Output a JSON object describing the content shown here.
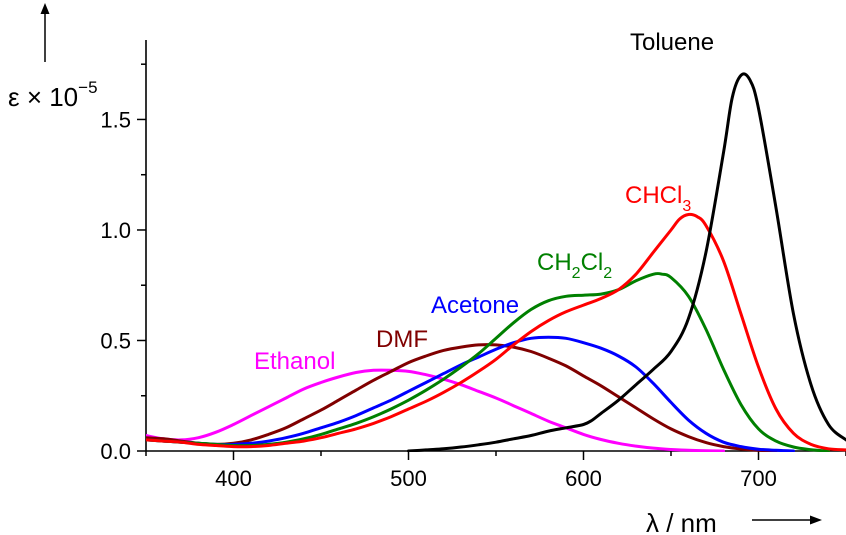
{
  "chart_data": {
    "type": "line",
    "title": "",
    "xlabel": "λ / nm",
    "ylabel_prefix": "ε × 10",
    "ylabel_exp": "−5",
    "xlim": [
      350,
      750
    ],
    "ylim": [
      0,
      1.95
    ],
    "xticks": [
      400,
      500,
      600,
      700
    ],
    "xtick_labels": [
      "400",
      "500",
      "600",
      "700"
    ],
    "yticks": [
      0,
      0.5,
      1.0,
      1.5
    ],
    "ytick_labels": [
      "0.0",
      "0.5",
      "1.0",
      "1.5"
    ],
    "grid": false,
    "legend": "none",
    "series": [
      {
        "name": "Ethanol",
        "color": "#ff00ff",
        "label_main": "Ethanol",
        "label_sub": "",
        "label_tail": "",
        "label_sub2": "",
        "points": [
          [
            350,
            0.07
          ],
          [
            360,
            0.055
          ],
          [
            370,
            0.05
          ],
          [
            380,
            0.06
          ],
          [
            390,
            0.085
          ],
          [
            400,
            0.12
          ],
          [
            410,
            0.16
          ],
          [
            420,
            0.2
          ],
          [
            430,
            0.24
          ],
          [
            440,
            0.28
          ],
          [
            450,
            0.31
          ],
          [
            460,
            0.335
          ],
          [
            470,
            0.355
          ],
          [
            480,
            0.365
          ],
          [
            490,
            0.365
          ],
          [
            500,
            0.36
          ],
          [
            510,
            0.345
          ],
          [
            520,
            0.325
          ],
          [
            530,
            0.3
          ],
          [
            540,
            0.27
          ],
          [
            550,
            0.24
          ],
          [
            560,
            0.205
          ],
          [
            570,
            0.17
          ],
          [
            580,
            0.135
          ],
          [
            590,
            0.105
          ],
          [
            600,
            0.075
          ],
          [
            610,
            0.052
          ],
          [
            620,
            0.035
          ],
          [
            630,
            0.022
          ],
          [
            640,
            0.013
          ],
          [
            650,
            0.007
          ],
          [
            660,
            0.003
          ],
          [
            670,
            0.001
          ],
          [
            680,
            0
          ]
        ]
      },
      {
        "name": "DMF",
        "color": "#800000",
        "label_main": "DMF",
        "label_sub": "",
        "label_tail": "",
        "label_sub2": "",
        "points": [
          [
            350,
            0.06
          ],
          [
            360,
            0.055
          ],
          [
            370,
            0.045
          ],
          [
            380,
            0.035
          ],
          [
            390,
            0.03
          ],
          [
            400,
            0.035
          ],
          [
            410,
            0.05
          ],
          [
            420,
            0.075
          ],
          [
            430,
            0.105
          ],
          [
            440,
            0.145
          ],
          [
            450,
            0.185
          ],
          [
            460,
            0.23
          ],
          [
            470,
            0.275
          ],
          [
            480,
            0.32
          ],
          [
            490,
            0.36
          ],
          [
            500,
            0.4
          ],
          [
            510,
            0.43
          ],
          [
            520,
            0.455
          ],
          [
            530,
            0.47
          ],
          [
            540,
            0.48
          ],
          [
            550,
            0.48
          ],
          [
            560,
            0.47
          ],
          [
            570,
            0.45
          ],
          [
            580,
            0.42
          ],
          [
            590,
            0.385
          ],
          [
            600,
            0.34
          ],
          [
            610,
            0.295
          ],
          [
            620,
            0.245
          ],
          [
            630,
            0.195
          ],
          [
            640,
            0.145
          ],
          [
            650,
            0.1
          ],
          [
            660,
            0.065
          ],
          [
            670,
            0.038
          ],
          [
            680,
            0.02
          ],
          [
            690,
            0.009
          ],
          [
            700,
            0.003
          ],
          [
            710,
            0
          ]
        ]
      },
      {
        "name": "Acetone",
        "color": "#0000ff",
        "label_main": "Acetone",
        "label_sub": "",
        "label_tail": "",
        "label_sub2": "",
        "points": [
          [
            350,
            0.05
          ],
          [
            360,
            0.045
          ],
          [
            370,
            0.04
          ],
          [
            380,
            0.035
          ],
          [
            390,
            0.03
          ],
          [
            400,
            0.03
          ],
          [
            410,
            0.035
          ],
          [
            420,
            0.045
          ],
          [
            430,
            0.06
          ],
          [
            440,
            0.08
          ],
          [
            450,
            0.105
          ],
          [
            460,
            0.13
          ],
          [
            470,
            0.16
          ],
          [
            480,
            0.195
          ],
          [
            490,
            0.23
          ],
          [
            500,
            0.27
          ],
          [
            510,
            0.31
          ],
          [
            520,
            0.35
          ],
          [
            530,
            0.39
          ],
          [
            540,
            0.425
          ],
          [
            550,
            0.46
          ],
          [
            560,
            0.49
          ],
          [
            570,
            0.51
          ],
          [
            580,
            0.515
          ],
          [
            590,
            0.51
          ],
          [
            600,
            0.49
          ],
          [
            610,
            0.465
          ],
          [
            620,
            0.43
          ],
          [
            630,
            0.38
          ],
          [
            640,
            0.305
          ],
          [
            650,
            0.22
          ],
          [
            660,
            0.14
          ],
          [
            670,
            0.08
          ],
          [
            680,
            0.04
          ],
          [
            690,
            0.02
          ],
          [
            700,
            0.008
          ],
          [
            710,
            0.003
          ],
          [
            720,
            0
          ]
        ]
      },
      {
        "name": "CH2Cl2",
        "color": "#008000",
        "label_main": "CH",
        "label_sub": "2",
        "label_tail": "Cl",
        "label_sub2": "2",
        "points": [
          [
            350,
            0.05
          ],
          [
            360,
            0.045
          ],
          [
            370,
            0.04
          ],
          [
            380,
            0.035
          ],
          [
            390,
            0.03
          ],
          [
            400,
            0.025
          ],
          [
            410,
            0.025
          ],
          [
            420,
            0.03
          ],
          [
            430,
            0.04
          ],
          [
            440,
            0.055
          ],
          [
            450,
            0.075
          ],
          [
            460,
            0.1
          ],
          [
            470,
            0.125
          ],
          [
            480,
            0.155
          ],
          [
            490,
            0.19
          ],
          [
            500,
            0.23
          ],
          [
            510,
            0.275
          ],
          [
            520,
            0.325
          ],
          [
            530,
            0.38
          ],
          [
            540,
            0.44
          ],
          [
            550,
            0.51
          ],
          [
            560,
            0.58
          ],
          [
            570,
            0.64
          ],
          [
            580,
            0.68
          ],
          [
            590,
            0.7
          ],
          [
            600,
            0.705
          ],
          [
            610,
            0.71
          ],
          [
            620,
            0.73
          ],
          [
            630,
            0.77
          ],
          [
            640,
            0.8
          ],
          [
            645,
            0.8
          ],
          [
            650,
            0.785
          ],
          [
            660,
            0.7
          ],
          [
            670,
            0.55
          ],
          [
            680,
            0.37
          ],
          [
            690,
            0.21
          ],
          [
            700,
            0.1
          ],
          [
            710,
            0.045
          ],
          [
            720,
            0.018
          ],
          [
            730,
            0.006
          ],
          [
            740,
            0
          ]
        ]
      },
      {
        "name": "CHCl3",
        "color": "#ff0000",
        "label_main": "CHCl",
        "label_sub": "3",
        "label_tail": "",
        "label_sub2": "",
        "points": [
          [
            350,
            0.05
          ],
          [
            360,
            0.045
          ],
          [
            370,
            0.04
          ],
          [
            380,
            0.03
          ],
          [
            390,
            0.025
          ],
          [
            400,
            0.02
          ],
          [
            410,
            0.02
          ],
          [
            420,
            0.025
          ],
          [
            430,
            0.035
          ],
          [
            440,
            0.045
          ],
          [
            450,
            0.06
          ],
          [
            460,
            0.08
          ],
          [
            470,
            0.1
          ],
          [
            480,
            0.125
          ],
          [
            490,
            0.155
          ],
          [
            500,
            0.19
          ],
          [
            510,
            0.225
          ],
          [
            520,
            0.265
          ],
          [
            530,
            0.31
          ],
          [
            540,
            0.36
          ],
          [
            550,
            0.415
          ],
          [
            560,
            0.48
          ],
          [
            570,
            0.54
          ],
          [
            580,
            0.59
          ],
          [
            590,
            0.63
          ],
          [
            600,
            0.66
          ],
          [
            610,
            0.69
          ],
          [
            620,
            0.73
          ],
          [
            630,
            0.8
          ],
          [
            640,
            0.9
          ],
          [
            650,
            1.0
          ],
          [
            655,
            1.05
          ],
          [
            660,
            1.07
          ],
          [
            665,
            1.06
          ],
          [
            670,
            1.02
          ],
          [
            680,
            0.86
          ],
          [
            690,
            0.62
          ],
          [
            700,
            0.38
          ],
          [
            710,
            0.19
          ],
          [
            720,
            0.08
          ],
          [
            730,
            0.03
          ],
          [
            740,
            0.01
          ],
          [
            750,
            0.005
          ]
        ]
      },
      {
        "name": "Toluene",
        "color": "#000000",
        "label_main": "Toluene",
        "label_sub": "",
        "label_tail": "",
        "label_sub2": "",
        "points": [
          [
            500,
            0
          ],
          [
            510,
            0.005
          ],
          [
            520,
            0.01
          ],
          [
            530,
            0.018
          ],
          [
            540,
            0.028
          ],
          [
            550,
            0.04
          ],
          [
            560,
            0.055
          ],
          [
            570,
            0.07
          ],
          [
            580,
            0.09
          ],
          [
            590,
            0.105
          ],
          [
            600,
            0.12
          ],
          [
            605,
            0.14
          ],
          [
            610,
            0.17
          ],
          [
            620,
            0.23
          ],
          [
            630,
            0.3
          ],
          [
            640,
            0.37
          ],
          [
            650,
            0.45
          ],
          [
            660,
            0.6
          ],
          [
            670,
            0.9
          ],
          [
            680,
            1.35
          ],
          [
            685,
            1.6
          ],
          [
            690,
            1.7
          ],
          [
            695,
            1.68
          ],
          [
            700,
            1.55
          ],
          [
            710,
            1.1
          ],
          [
            720,
            0.62
          ],
          [
            730,
            0.3
          ],
          [
            740,
            0.12
          ],
          [
            750,
            0.05
          ]
        ]
      }
    ]
  }
}
